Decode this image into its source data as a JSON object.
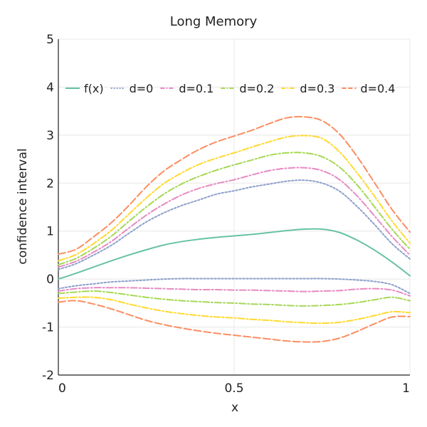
{
  "chart_data": {
    "type": "line",
    "title": "Long Memory",
    "xlabel": "x",
    "ylabel": "confidence interval",
    "xlim": [
      0,
      1
    ],
    "ylim": [
      -2,
      5
    ],
    "xticks": [
      0,
      0.5,
      1
    ],
    "xtick_labels": [
      "0",
      "0.5",
      "1"
    ],
    "yticks": [
      -2,
      -1,
      0,
      1,
      2,
      3,
      4,
      5
    ],
    "ytick_labels": [
      "-2",
      "-1",
      "0",
      "1",
      "2",
      "3",
      "4",
      "5"
    ],
    "grid": true,
    "legend_position": "top",
    "x": [
      0,
      0.05,
      0.1,
      0.15,
      0.2,
      0.25,
      0.3,
      0.35,
      0.4,
      0.45,
      0.5,
      0.55,
      0.6,
      0.65,
      0.7,
      0.75,
      0.8,
      0.85,
      0.9,
      0.95,
      1
    ],
    "series": [
      {
        "name": "f(x)",
        "color": "#66c2a5",
        "dash": "solid",
        "values": [
          0.0,
          0.12,
          0.25,
          0.38,
          0.5,
          0.61,
          0.71,
          0.78,
          0.83,
          0.87,
          0.9,
          0.93,
          0.97,
          1.01,
          1.04,
          1.04,
          0.97,
          0.81,
          0.6,
          0.35,
          0.07
        ]
      },
      {
        "name": "d=0",
        "color": "#8da0cb",
        "dash": "dotted",
        "upper": [
          0.2,
          0.32,
          0.5,
          0.7,
          0.95,
          1.19,
          1.38,
          1.53,
          1.65,
          1.77,
          1.84,
          1.92,
          1.98,
          2.04,
          2.06,
          2.0,
          1.83,
          1.51,
          1.13,
          0.73,
          0.42
        ],
        "lower": [
          -0.2,
          -0.14,
          -0.1,
          -0.06,
          -0.04,
          -0.02,
          0.0,
          0.01,
          0.01,
          0.01,
          0.01,
          0.01,
          0.01,
          0.01,
          0.01,
          0.01,
          0.0,
          -0.02,
          -0.05,
          -0.12,
          -0.3
        ]
      },
      {
        "name": "d=0.1",
        "color": "#e78ac3",
        "dash": "dashdot",
        "upper": [
          0.25,
          0.37,
          0.56,
          0.78,
          1.06,
          1.33,
          1.56,
          1.75,
          1.89,
          1.99,
          2.07,
          2.17,
          2.26,
          2.31,
          2.32,
          2.26,
          2.07,
          1.73,
          1.31,
          0.88,
          0.5
        ],
        "lower": [
          -0.25,
          -0.2,
          -0.18,
          -0.18,
          -0.18,
          -0.19,
          -0.2,
          -0.21,
          -0.22,
          -0.22,
          -0.23,
          -0.23,
          -0.24,
          -0.25,
          -0.26,
          -0.25,
          -0.24,
          -0.21,
          -0.2,
          -0.23,
          -0.35
        ]
      },
      {
        "name": "d=0.2",
        "color": "#a6d854",
        "dash": "dashdot",
        "upper": [
          0.3,
          0.43,
          0.64,
          0.89,
          1.2,
          1.5,
          1.77,
          1.98,
          2.14,
          2.27,
          2.38,
          2.48,
          2.58,
          2.63,
          2.63,
          2.55,
          2.33,
          1.96,
          1.5,
          1.03,
          0.62
        ],
        "lower": [
          -0.3,
          -0.27,
          -0.25,
          -0.28,
          -0.33,
          -0.38,
          -0.42,
          -0.45,
          -0.47,
          -0.49,
          -0.5,
          -0.52,
          -0.53,
          -0.55,
          -0.56,
          -0.55,
          -0.53,
          -0.49,
          -0.43,
          -0.38,
          -0.45
        ]
      },
      {
        "name": "d=0.3",
        "color": "#ffd92f",
        "dash": "dashdot",
        "upper": [
          0.38,
          0.51,
          0.74,
          1.01,
          1.35,
          1.69,
          1.99,
          2.21,
          2.39,
          2.52,
          2.63,
          2.75,
          2.86,
          2.96,
          2.99,
          2.93,
          2.65,
          2.21,
          1.72,
          1.2,
          0.75
        ],
        "lower": [
          -0.4,
          -0.38,
          -0.38,
          -0.43,
          -0.52,
          -0.6,
          -0.67,
          -0.72,
          -0.76,
          -0.79,
          -0.81,
          -0.84,
          -0.86,
          -0.89,
          -0.91,
          -0.92,
          -0.9,
          -0.84,
          -0.76,
          -0.68,
          -0.7
        ]
      },
      {
        "name": "d=0.4",
        "color": "#fc8d62",
        "dash": "dashed",
        "upper": [
          0.52,
          0.62,
          0.88,
          1.17,
          1.53,
          1.92,
          2.25,
          2.49,
          2.7,
          2.86,
          2.98,
          3.1,
          3.24,
          3.36,
          3.38,
          3.3,
          3.02,
          2.55,
          2.0,
          1.44,
          0.98
        ],
        "lower": [
          -0.48,
          -0.45,
          -0.52,
          -0.62,
          -0.74,
          -0.86,
          -0.95,
          -1.02,
          -1.08,
          -1.13,
          -1.17,
          -1.21,
          -1.25,
          -1.29,
          -1.31,
          -1.3,
          -1.23,
          -1.09,
          -0.93,
          -0.79,
          -0.78
        ]
      }
    ]
  }
}
